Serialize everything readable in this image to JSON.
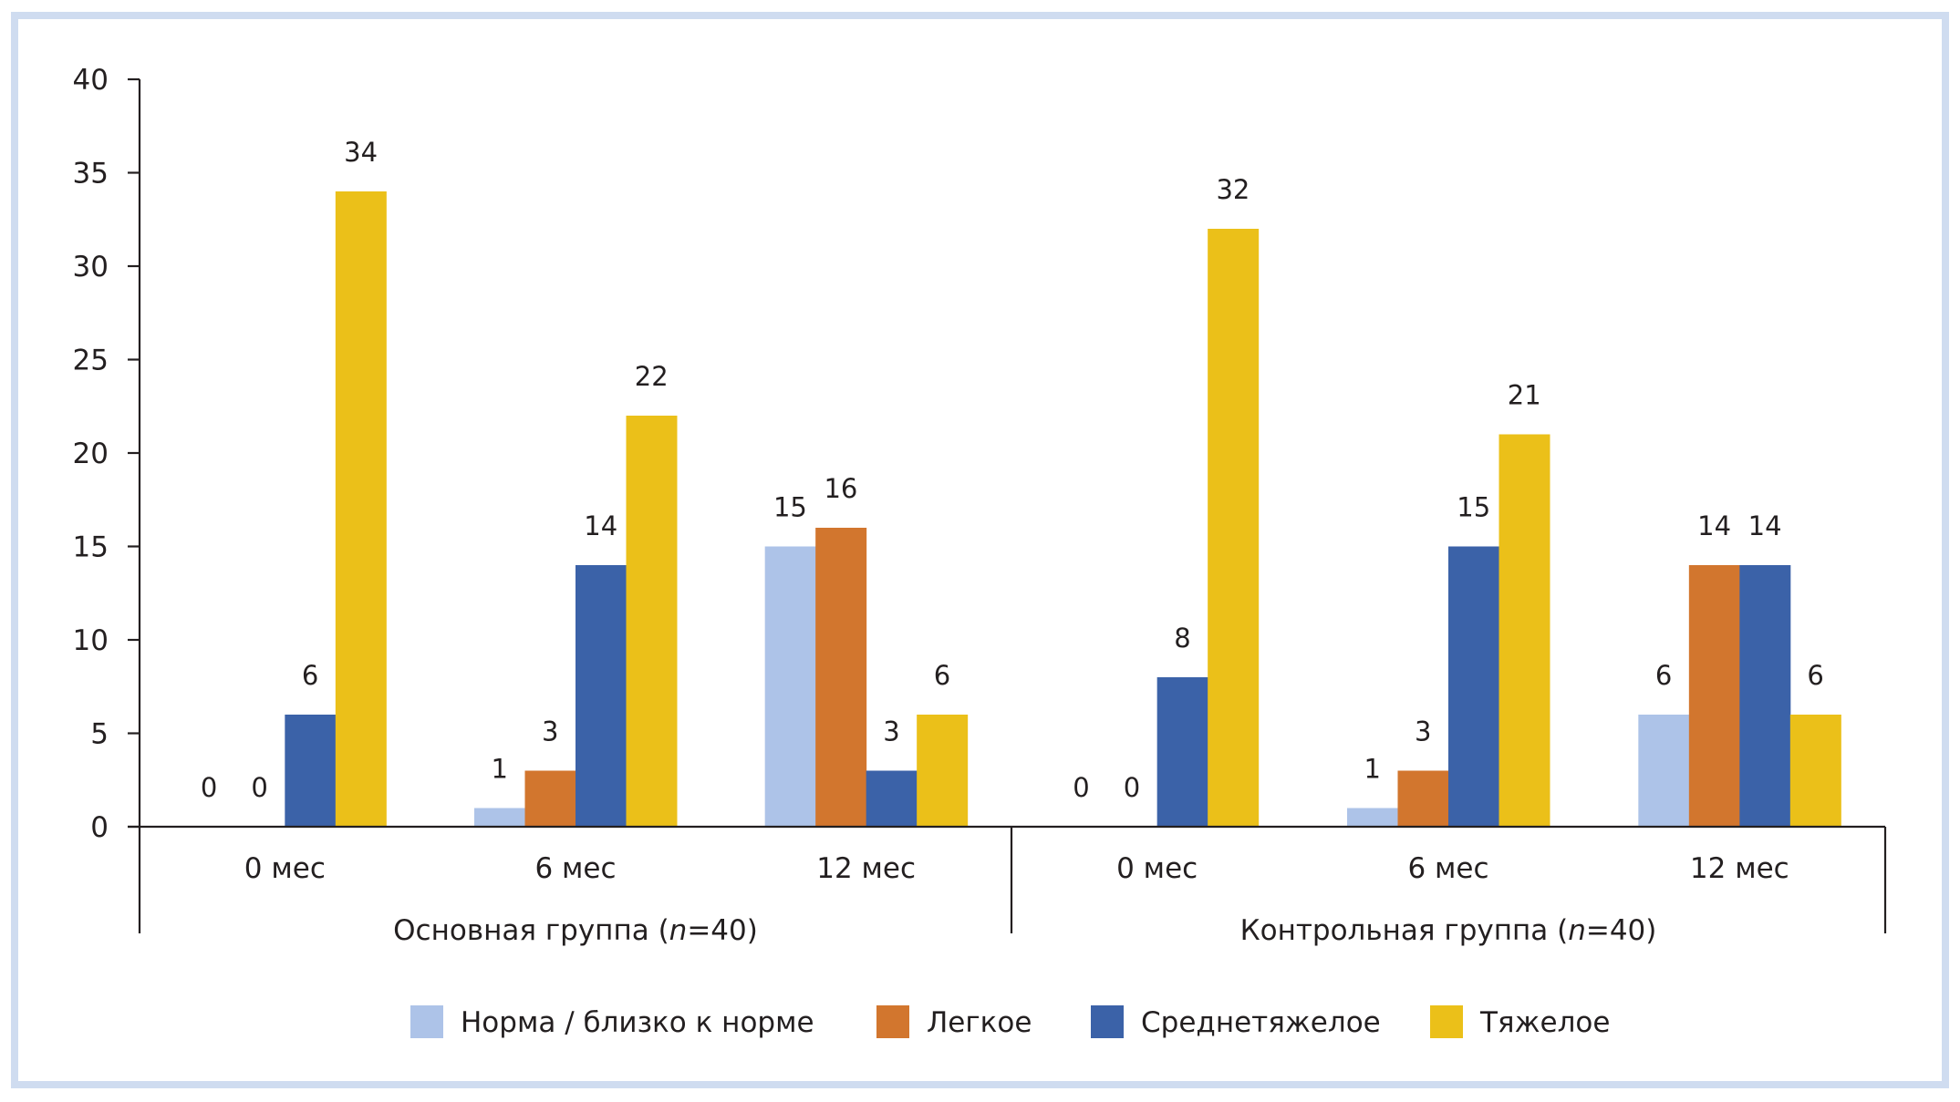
{
  "chart_data": {
    "type": "bar",
    "title": "",
    "xlabel": "",
    "ylabel": "",
    "ylim": [
      0,
      40
    ],
    "yticks": [
      0,
      5,
      10,
      15,
      20,
      25,
      30,
      35,
      40
    ],
    "grid": false,
    "legend_position": "bottom",
    "groups": [
      {
        "label_main": "Основная группа (",
        "label_n": "n",
        "label_rest": "=40)",
        "categories": [
          "0 мес",
          "6 мес",
          "12 мес"
        ]
      },
      {
        "label_main": "Контрольная группа (",
        "label_n": "n",
        "label_rest": "=40)",
        "categories": [
          "0 мес",
          "6 мес",
          "12 мес"
        ]
      }
    ],
    "categories": [
      "0 мес",
      "6 мес",
      "12 мес",
      "0 мес",
      "6 мес",
      "12 мес"
    ],
    "series": [
      {
        "name": "Норма / близко к норме",
        "color": "#adc3e8",
        "values": [
          0,
          1,
          15,
          0,
          1,
          6
        ]
      },
      {
        "name": "Легкое",
        "color": "#d2762e",
        "values": [
          0,
          3,
          16,
          0,
          3,
          14
        ]
      },
      {
        "name": "Среднетяжелое",
        "color": "#3b62a8",
        "values": [
          6,
          14,
          3,
          8,
          15,
          14
        ]
      },
      {
        "name": "Тяжелое",
        "color": "#ebc019",
        "values": [
          34,
          22,
          6,
          32,
          21,
          6
        ]
      }
    ]
  },
  "colors": {
    "frame_border": "#cfdcf0",
    "axis": "#231f20"
  }
}
